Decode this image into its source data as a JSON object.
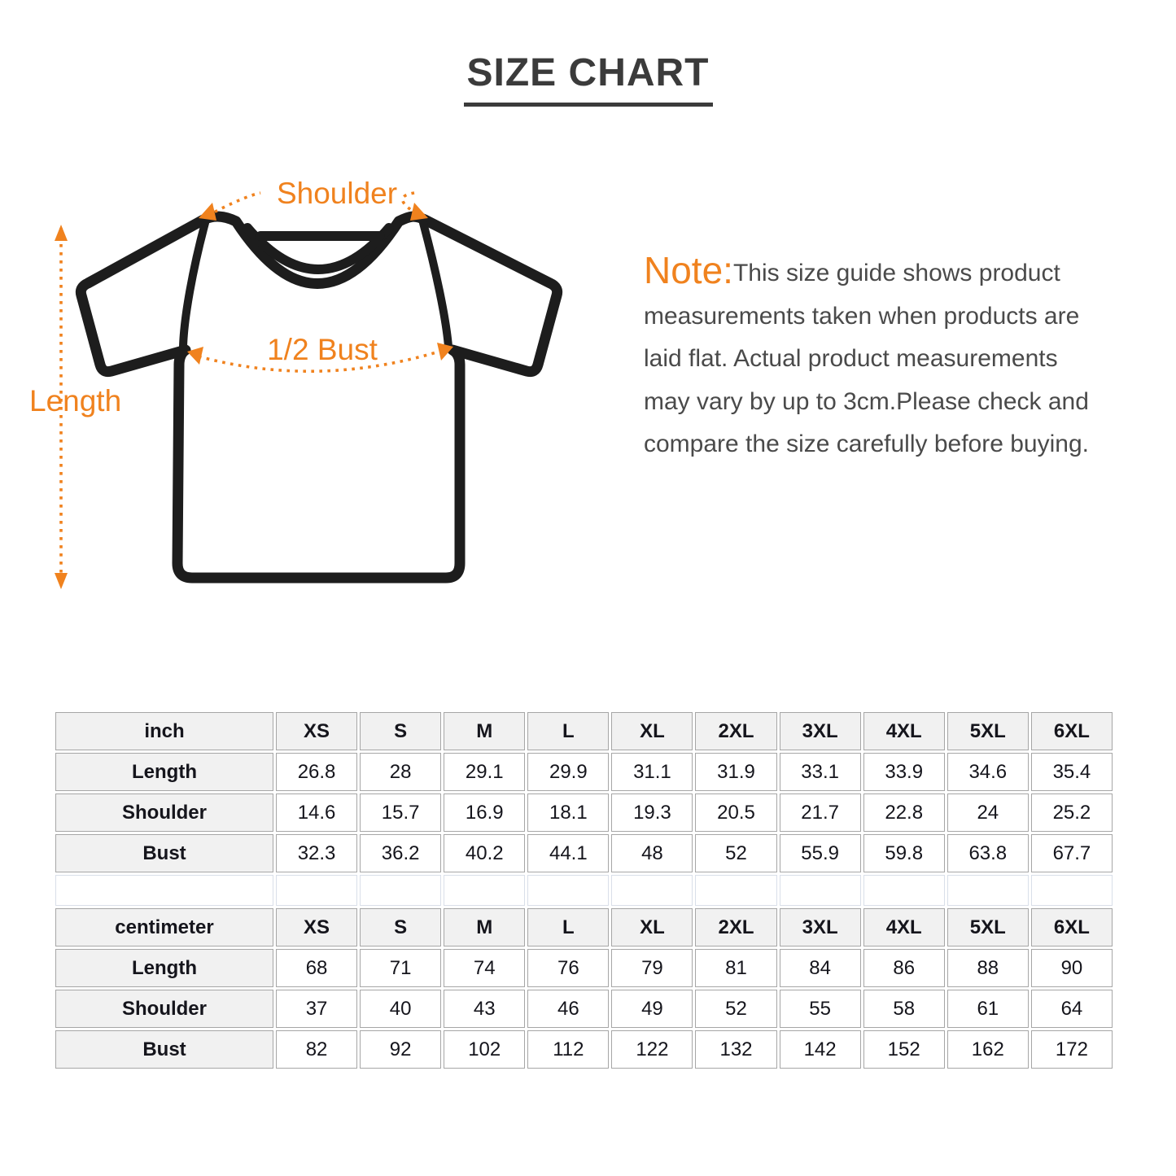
{
  "title": "SIZE CHART",
  "note": {
    "label": "Note:",
    "lines": [
      "This size guide shows product",
      "measurements taken when products are",
      "laid flat. Actual product measurements",
      "may vary by up to 3cm.Please check and",
      "compare the size carefully before buying."
    ]
  },
  "diagram": {
    "shoulder_label": "Shoulder",
    "bust_label": "1/2 Bust",
    "length_label": "Length"
  },
  "theme": {
    "accent_orange": "#F0821E",
    "outline_black": "#1d1d1d",
    "title_color": "#3b3b3b",
    "note_text_color": "#4a4a4a",
    "table_border_color": "#a6a6a6",
    "table_header_bg": "#f1f1f1",
    "spacer_border_color": "#d9dfe9",
    "table_text_color": "#15151c"
  },
  "size_tables": [
    {
      "unit_label": "inch",
      "sizes": [
        "XS",
        "S",
        "M",
        "L",
        "XL",
        "2XL",
        "3XL",
        "4XL",
        "5XL",
        "6XL"
      ],
      "rows": [
        {
          "label": "Length",
          "values": [
            "26.8",
            "28",
            "29.1",
            "29.9",
            "31.1",
            "31.9",
            "33.1",
            "33.9",
            "34.6",
            "35.4"
          ]
        },
        {
          "label": "Shoulder",
          "values": [
            "14.6",
            "15.7",
            "16.9",
            "18.1",
            "19.3",
            "20.5",
            "21.7",
            "22.8",
            "24",
            "25.2"
          ]
        },
        {
          "label": "Bust",
          "values": [
            "32.3",
            "36.2",
            "40.2",
            "44.1",
            "48",
            "52",
            "55.9",
            "59.8",
            "63.8",
            "67.7"
          ]
        }
      ]
    },
    {
      "unit_label": "centimeter",
      "sizes": [
        "XS",
        "S",
        "M",
        "L",
        "XL",
        "2XL",
        "3XL",
        "4XL",
        "5XL",
        "6XL"
      ],
      "rows": [
        {
          "label": "Length",
          "values": [
            "68",
            "71",
            "74",
            "76",
            "79",
            "81",
            "84",
            "86",
            "88",
            "90"
          ]
        },
        {
          "label": "Shoulder",
          "values": [
            "37",
            "40",
            "43",
            "46",
            "49",
            "52",
            "55",
            "58",
            "61",
            "64"
          ]
        },
        {
          "label": "Bust",
          "values": [
            "82",
            "92",
            "102",
            "112",
            "122",
            "132",
            "142",
            "152",
            "162",
            "172"
          ]
        }
      ]
    }
  ]
}
